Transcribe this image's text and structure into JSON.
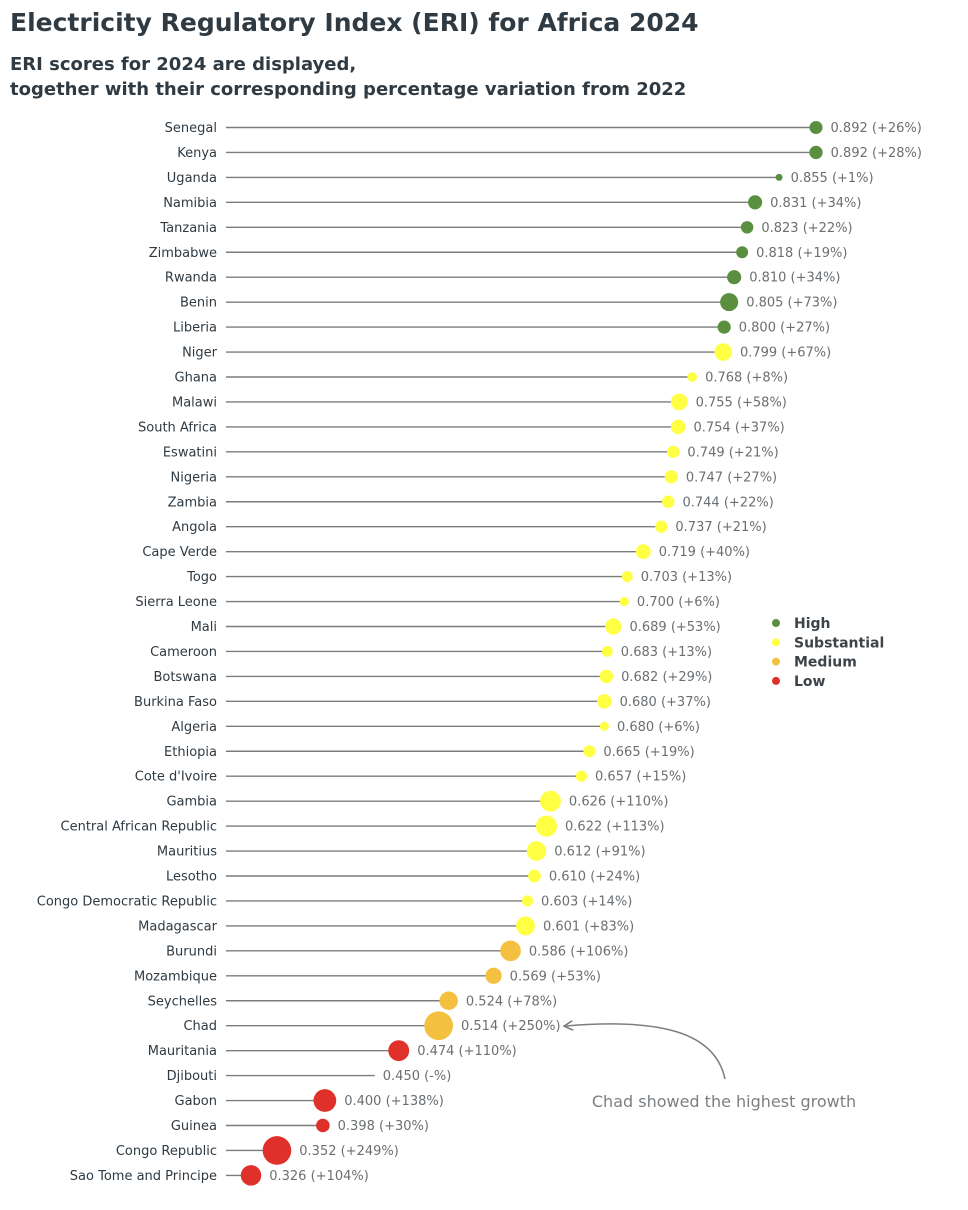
{
  "title": "Electricity Regulatory Index (ERI) for Africa 2024",
  "subtitle_lines": [
    "ERI scores for 2024 are displayed,",
    "together with their corresponding percentage variation from 2022"
  ],
  "colors": {
    "High": "#5a8f40",
    "Substantial": "#ffff44",
    "Medium": "#f4c040",
    "Low": "#e0302a"
  },
  "legend": [
    "High",
    "Substantial",
    "Medium",
    "Low"
  ],
  "annotation": "Chad showed the highest growth",
  "chart_data": {
    "type": "scatter",
    "title": "Electricity Regulatory Index (ERI) for Africa 2024",
    "xlabel": "",
    "ylabel": "",
    "rows": [
      {
        "country": "Senegal",
        "eri": 0.892,
        "change_label": "(+26%)",
        "change": 26,
        "category": "High"
      },
      {
        "country": "Kenya",
        "eri": 0.892,
        "change_label": "(+28%)",
        "change": 28,
        "category": "High"
      },
      {
        "country": "Uganda",
        "eri": 0.855,
        "change_label": "(+1%)",
        "change": 1,
        "category": "High"
      },
      {
        "country": "Namibia",
        "eri": 0.831,
        "change_label": "(+34%)",
        "change": 34,
        "category": "High"
      },
      {
        "country": "Tanzania",
        "eri": 0.823,
        "change_label": "(+22%)",
        "change": 22,
        "category": "High"
      },
      {
        "country": "Zimbabwe",
        "eri": 0.818,
        "change_label": "(+19%)",
        "change": 19,
        "category": "High"
      },
      {
        "country": "Rwanda",
        "eri": 0.81,
        "change_label": "(+34%)",
        "change": 34,
        "category": "High"
      },
      {
        "country": "Benin",
        "eri": 0.805,
        "change_label": "(+73%)",
        "change": 73,
        "category": "High"
      },
      {
        "country": "Liberia",
        "eri": 0.8,
        "change_label": "(+27%)",
        "change": 27,
        "category": "High"
      },
      {
        "country": "Niger",
        "eri": 0.799,
        "change_label": "(+67%)",
        "change": 67,
        "category": "Substantial"
      },
      {
        "country": "Ghana",
        "eri": 0.768,
        "change_label": "(+8%)",
        "change": 8,
        "category": "Substantial"
      },
      {
        "country": "Malawi",
        "eri": 0.755,
        "change_label": "(+58%)",
        "change": 58,
        "category": "Substantial"
      },
      {
        "country": "South Africa",
        "eri": 0.754,
        "change_label": "(+37%)",
        "change": 37,
        "category": "Substantial"
      },
      {
        "country": "Eswatini",
        "eri": 0.749,
        "change_label": "(+21%)",
        "change": 21,
        "category": "Substantial"
      },
      {
        "country": "Nigeria",
        "eri": 0.747,
        "change_label": "(+27%)",
        "change": 27,
        "category": "Substantial"
      },
      {
        "country": "Zambia",
        "eri": 0.744,
        "change_label": "(+22%)",
        "change": 22,
        "category": "Substantial"
      },
      {
        "country": "Angola",
        "eri": 0.737,
        "change_label": "(+21%)",
        "change": 21,
        "category": "Substantial"
      },
      {
        "country": "Cape Verde",
        "eri": 0.719,
        "change_label": "(+40%)",
        "change": 40,
        "category": "Substantial"
      },
      {
        "country": "Togo",
        "eri": 0.703,
        "change_label": "(+13%)",
        "change": 13,
        "category": "Substantial"
      },
      {
        "country": "Sierra Leone",
        "eri": 0.7,
        "change_label": "(+6%)",
        "change": 6,
        "category": "Substantial"
      },
      {
        "country": "Mali",
        "eri": 0.689,
        "change_label": "(+53%)",
        "change": 53,
        "category": "Substantial"
      },
      {
        "country": "Cameroon",
        "eri": 0.683,
        "change_label": "(+13%)",
        "change": 13,
        "category": "Substantial"
      },
      {
        "country": "Botswana",
        "eri": 0.682,
        "change_label": "(+29%)",
        "change": 29,
        "category": "Substantial"
      },
      {
        "country": "Burkina Faso",
        "eri": 0.68,
        "change_label": "(+37%)",
        "change": 37,
        "category": "Substantial"
      },
      {
        "country": "Algeria",
        "eri": 0.68,
        "change_label": "(+6%)",
        "change": 6,
        "category": "Substantial"
      },
      {
        "country": "Ethiopia",
        "eri": 0.665,
        "change_label": "(+19%)",
        "change": 19,
        "category": "Substantial"
      },
      {
        "country": "Cote d'Ivoire",
        "eri": 0.657,
        "change_label": "(+15%)",
        "change": 15,
        "category": "Substantial"
      },
      {
        "country": "Gambia",
        "eri": 0.626,
        "change_label": "(+110%)",
        "change": 110,
        "category": "Substantial"
      },
      {
        "country": "Central African Republic",
        "eri": 0.622,
        "change_label": "(+113%)",
        "change": 113,
        "category": "Substantial"
      },
      {
        "country": "Mauritius",
        "eri": 0.612,
        "change_label": "(+91%)",
        "change": 91,
        "category": "Substantial"
      },
      {
        "country": "Lesotho",
        "eri": 0.61,
        "change_label": "(+24%)",
        "change": 24,
        "category": "Substantial"
      },
      {
        "country": "Congo Democratic Republic",
        "eri": 0.603,
        "change_label": "(+14%)",
        "change": 14,
        "category": "Substantial"
      },
      {
        "country": "Madagascar",
        "eri": 0.601,
        "change_label": "(+83%)",
        "change": 83,
        "category": "Substantial"
      },
      {
        "country": "Burundi",
        "eri": 0.586,
        "change_label": "(+106%)",
        "change": 106,
        "category": "Medium"
      },
      {
        "country": "Mozambique",
        "eri": 0.569,
        "change_label": "(+53%)",
        "change": 53,
        "category": "Medium"
      },
      {
        "country": "Seychelles",
        "eri": 0.524,
        "change_label": "(+78%)",
        "change": 78,
        "category": "Medium"
      },
      {
        "country": "Chad",
        "eri": 0.514,
        "change_label": "(+250%)",
        "change": 250,
        "category": "Medium"
      },
      {
        "country": "Mauritania",
        "eri": 0.474,
        "change_label": "(+110%)",
        "change": 110,
        "category": "Low"
      },
      {
        "country": "Djibouti",
        "eri": 0.45,
        "change_label": "(-%)",
        "change": null,
        "category": "None"
      },
      {
        "country": "Gabon",
        "eri": 0.4,
        "change_label": "(+138%)",
        "change": 138,
        "category": "Low"
      },
      {
        "country": "Guinea",
        "eri": 0.398,
        "change_label": "(+30%)",
        "change": 30,
        "category": "Low"
      },
      {
        "country": "Congo Republic",
        "eri": 0.352,
        "change_label": "(+249%)",
        "change": 249,
        "category": "Low"
      },
      {
        "country": "Sao Tome and Principe",
        "eri": 0.326,
        "change_label": "(+104%)",
        "change": 104,
        "category": "Low"
      }
    ]
  }
}
